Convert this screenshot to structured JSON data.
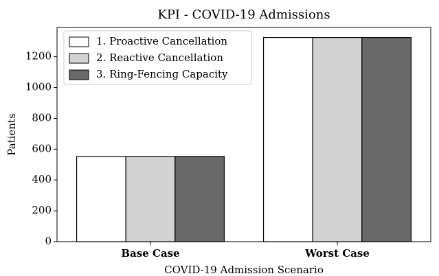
{
  "chart_data": {
    "type": "bar",
    "title": "KPI - COVID-19 Admissions",
    "x_label": "COVID-19 Admission Scenario",
    "y_label": "Patients",
    "categories": [
      "Base Case",
      "Worst Case"
    ],
    "series": [
      {
        "name": "1. Proactive Cancellation",
        "color": "#ffffff",
        "values": [
          553,
          1325
        ]
      },
      {
        "name": "2. Reactive Cancellation",
        "color": "#d3d3d3",
        "values": [
          553,
          1325
        ]
      },
      {
        "name": "3. Ring-Fencing Capacity",
        "color": "#696969",
        "values": [
          553,
          1325
        ]
      }
    ],
    "ylim": [
      0,
      1390
    ],
    "yticks": [
      0,
      200,
      400,
      600,
      800,
      1000,
      1200
    ],
    "legend": "upper left"
  }
}
